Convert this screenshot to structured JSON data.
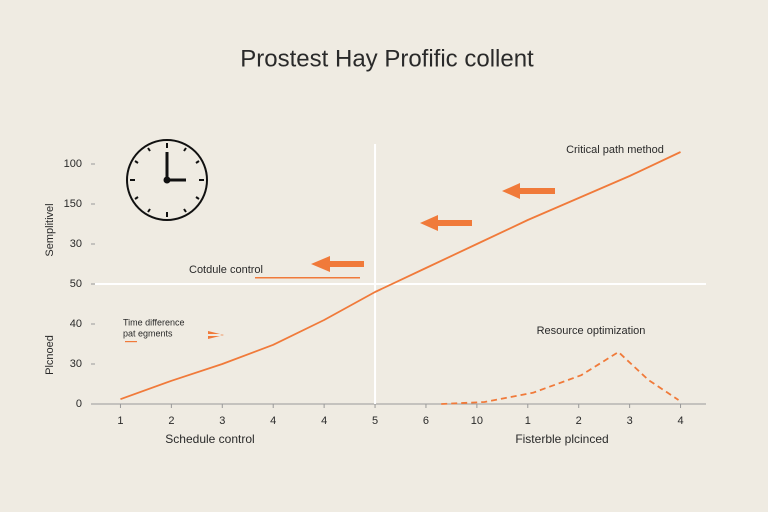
{
  "chart_data": {
    "type": "line",
    "title": "Prostest Hay Profific collent",
    "y_labels": [
      "Semplitivel",
      "Plcnoed"
    ],
    "x_labels": [
      "Schedule control",
      "Fisterble plcinced"
    ],
    "annotations": [
      "Critical path method",
      "Cotdule control",
      "Time difference",
      "pat egments",
      "Resource optimization"
    ],
    "xlim": [
      -0.5,
      11.5
    ],
    "ylim": [
      0,
      6.5
    ],
    "xticks": [
      {
        "value": 0,
        "label": "1"
      },
      {
        "value": 1,
        "label": "2"
      },
      {
        "value": 2,
        "label": "3"
      },
      {
        "value": 3,
        "label": "4"
      },
      {
        "value": 4,
        "label": "4"
      },
      {
        "value": 5,
        "label": "5"
      },
      {
        "value": 6,
        "label": "6"
      },
      {
        "value": 7,
        "label": "10"
      },
      {
        "value": 8,
        "label": "1"
      },
      {
        "value": 9,
        "label": "2"
      },
      {
        "value": 10,
        "label": "3"
      },
      {
        "value": 11,
        "label": "4"
      }
    ],
    "yticks": [
      {
        "value": 0,
        "label": "0"
      },
      {
        "value": 1,
        "label": "30"
      },
      {
        "value": 2,
        "label": "40"
      },
      {
        "value": 3,
        "label": "50"
      },
      {
        "value": 4,
        "label": "30"
      },
      {
        "value": 5,
        "label": "150"
      },
      {
        "value": 6,
        "label": "100"
      }
    ],
    "reference_lines": {
      "x": 5,
      "y": 3
    },
    "series": [
      {
        "color": "#f07a3a",
        "style": "solid",
        "x": [
          0,
          1,
          2,
          3,
          4,
          5,
          6,
          7,
          8,
          9,
          10,
          11
        ],
        "values": [
          0.12,
          0.58,
          1.0,
          1.48,
          2.1,
          2.8,
          3.4,
          4.0,
          4.6,
          5.15,
          5.7,
          6.3
        ]
      },
      {
        "color": "#f07a3a",
        "style": "dashed",
        "x": [
          6.3,
          7.15,
          8.1,
          9.05,
          9.78,
          10.37,
          10.96
        ],
        "values": [
          0,
          0.05,
          0.28,
          0.72,
          1.3,
          0.6,
          0.1
        ]
      }
    ]
  }
}
